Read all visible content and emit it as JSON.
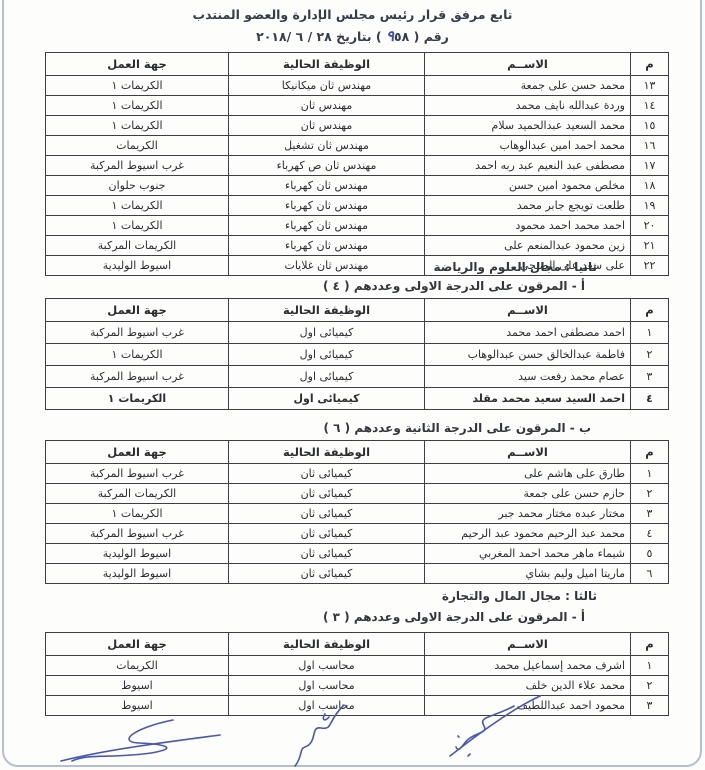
{
  "page": {
    "title_line1": "تابع مرفق قرار رئيس مجلس الإدارة والعضو المنتدب",
    "doc_no_prefix": "رقم (",
    "doc_no_handwritten": "٩",
    "doc_no_printed": "٥٨",
    "doc_no_suffix": ") بتاريخ",
    "doc_date": "٢٨ / ٦ /٢٠١٨",
    "ink_color": "#4a57b2",
    "border_color": "#3d3f42"
  },
  "columns": {
    "num": "م",
    "name": "الاســم",
    "job": "الوظيفة الحالية",
    "place": "جهة العمل"
  },
  "sections": {
    "second_domain": "ثانيا : مجال العلوم والرياضة",
    "second_a": "أ - المرقون على الدرجة الاولى وعددهم ( ٤ )",
    "second_b": "ب - المرقون على الدرجة الثانية وعددهم ( ٦ )",
    "third_domain": "ثالثا : مجال المال والتجارة",
    "third_a": "أ - المرقون على الدرجة الاولى وعددهم ( ٣ )"
  },
  "tables": [
    {
      "id": "engineers-continued",
      "rows": [
        {
          "num": "١٣",
          "name": "محمد حسن على جمعة",
          "job": "مهندس ثان ميكانيكا",
          "place": "الكريمات ١",
          "bold": false
        },
        {
          "num": "١٤",
          "name": "وردة عبدالله نايف محمد",
          "job": "مهندس ثان",
          "place": "الكريمات ١",
          "bold": false
        },
        {
          "num": "١٥",
          "name": "محمد السعيد عبدالحميد سلام",
          "job": "مهندس ثان",
          "place": "الكريمات ١",
          "bold": false
        },
        {
          "num": "١٦",
          "name": "محمد احمد امين عبدالوهاب",
          "job": "مهندس ثان تشغيل",
          "place": "الكريمات",
          "bold": false
        },
        {
          "num": "١٧",
          "name": "مصطفى عبد النعيم عبد ربه احمد",
          "job": "مهندس ثان ص كهرباء",
          "place": "غرب اسيوط المركبة",
          "bold": false
        },
        {
          "num": "١٨",
          "name": "مخلص محمود امين حسن",
          "job": "مهندس ثان كهرباء",
          "place": "جنوب حلوان",
          "bold": false
        },
        {
          "num": "١٩",
          "name": "طلعت تويجع جابر محمد",
          "job": "مهندس ثان كهرباء",
          "place": "الكريمات ١",
          "bold": false
        },
        {
          "num": "٢٠",
          "name": "احمد محمد احمد محمود",
          "job": "مهندس ثان كهرباء",
          "place": "الكريمات ١",
          "bold": false
        },
        {
          "num": "٢١",
          "name": "زين محمود عبدالمنعم على",
          "job": "مهندس ثان كهرباء",
          "place": "الكريمات المركبة",
          "bold": false
        },
        {
          "num": "٢٢",
          "name": "على سعد على الصبحي",
          "job": "مهندس ثان غلايات",
          "place": "اسيوط الوليدية",
          "bold": false
        }
      ]
    },
    {
      "id": "science-first-grade",
      "rows": [
        {
          "num": "١",
          "name": "احمد مصطفى احمد محمد",
          "job": "كيميائى اول",
          "place": "غرب اسيوط المركبة",
          "bold": false
        },
        {
          "num": "٢",
          "name": "فاطمة عبدالخالق حسن عبدالوهاب",
          "job": "كيميائى اول",
          "place": "الكريمات ١",
          "bold": false
        },
        {
          "num": "٣",
          "name": "عصام محمد رفعت سيد",
          "job": "كيميائى اول",
          "place": "غرب اسيوط المركبة",
          "bold": false
        },
        {
          "num": "٤",
          "name": "احمد السيد سعيد محمد مقلد",
          "job": "كيميائى اول",
          "place": "الكريمات ١",
          "bold": true
        }
      ]
    },
    {
      "id": "science-second-grade",
      "rows": [
        {
          "num": "١",
          "name": "طارق على هاشم على",
          "job": "كيميائى ثان",
          "place": "غرب اسيوط المركبة",
          "bold": false
        },
        {
          "num": "٢",
          "name": "حازم حسن على جمعة",
          "job": "كيميائى ثان",
          "place": "الكريمات المركبة",
          "bold": false
        },
        {
          "num": "٣",
          "name": "مختار عبده مختار محمد جبر",
          "job": "كيميائى ثان",
          "place": "الكريمات ١",
          "bold": false
        },
        {
          "num": "٤",
          "name": "محمد عبد الرحيم محمود عبد الرحيم",
          "job": "كيميائى ثان",
          "place": "غرب اسيوط المركبة",
          "bold": false
        },
        {
          "num": "٥",
          "name": "شيماء ماهر محمد احمد المغربي",
          "job": "كيميائى ثان",
          "place": "اسيوط الوليدية",
          "bold": false
        },
        {
          "num": "٦",
          "name": "ماريتا اميل وليم بشاي",
          "job": "كيميائى ثان",
          "place": "اسيوط الوليدية",
          "bold": false
        }
      ]
    },
    {
      "id": "finance-first-grade",
      "rows": [
        {
          "num": "١",
          "name": "اشرف محمد إسماعيل محمد",
          "job": "محاسب اول",
          "place": "الكريمات",
          "bold": false
        },
        {
          "num": "٢",
          "name": "محمد علاء الدين خلف",
          "job": "محاسب اول",
          "place": "اسيوط",
          "bold": false
        },
        {
          "num": "٣",
          "name": "محمود احمد عبداللطيف",
          "job": "محاسب اول",
          "place": "اسيوط",
          "bold": false
        }
      ]
    }
  ],
  "signatures": {
    "count": 3,
    "ink": "#4a57b2"
  }
}
